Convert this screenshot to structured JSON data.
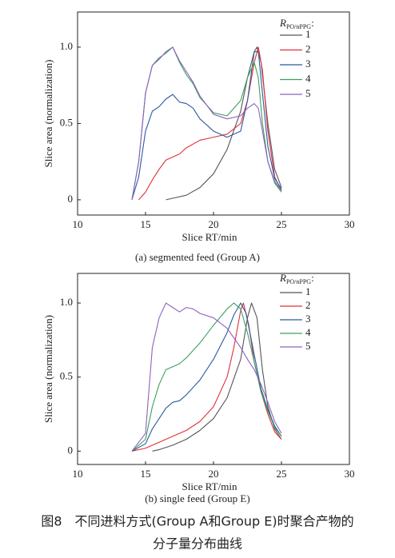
{
  "chart_data": [
    {
      "type": "line",
      "caption": "(a) segmented feed (Group A)",
      "xlabel": "Slice RT/min",
      "ylabel": "Slice area (normalization)",
      "legend_title": "R",
      "legend_title_sub": "PO/nPPG",
      "legend_title_suffix": ":",
      "xlim": [
        10,
        30
      ],
      "xticks": [
        10,
        15,
        20,
        25,
        30
      ],
      "ylim": [
        -0.1,
        1.23
      ],
      "yticks": [
        0,
        0.5,
        {
          "value": 1,
          "label": "1.0"
        }
      ],
      "series": [
        {
          "name": "1",
          "color": "#555555",
          "x": [
            16.5,
            17,
            18,
            19,
            20,
            21,
            22,
            22.5,
            23,
            23.2,
            23.5,
            24,
            24.5,
            25
          ],
          "values": [
            0,
            0.01,
            0.03,
            0.08,
            0.17,
            0.33,
            0.58,
            0.8,
            0.97,
            1.0,
            0.9,
            0.5,
            0.2,
            0.08
          ]
        },
        {
          "name": "2",
          "color": "#e0303a",
          "x": [
            14.5,
            15,
            15.5,
            16,
            16.5,
            17,
            17.5,
            18,
            19,
            20,
            21,
            22,
            22.5,
            23,
            23.3,
            23.6,
            24,
            24.5,
            25
          ],
          "values": [
            0,
            0.05,
            0.13,
            0.2,
            0.26,
            0.28,
            0.3,
            0.34,
            0.39,
            0.41,
            0.43,
            0.5,
            0.65,
            0.9,
            1.0,
            0.85,
            0.45,
            0.15,
            0.06
          ]
        },
        {
          "name": "3",
          "color": "#2a5aa0",
          "x": [
            14,
            14.5,
            15,
            15.5,
            16,
            16.5,
            17,
            17.5,
            18,
            18.5,
            19,
            20,
            21,
            22,
            22.5,
            23,
            23.3,
            23.6,
            24,
            24.5,
            25
          ],
          "values": [
            0,
            0.15,
            0.45,
            0.58,
            0.61,
            0.66,
            0.69,
            0.64,
            0.63,
            0.6,
            0.53,
            0.45,
            0.41,
            0.45,
            0.65,
            0.97,
            0.97,
            0.7,
            0.35,
            0.14,
            0.07
          ]
        },
        {
          "name": "4",
          "color": "#3aa060",
          "x": [
            14,
            14.5,
            15,
            15.5,
            16,
            16.5,
            17,
            17.5,
            18,
            18.5,
            19,
            20,
            21,
            22,
            22.5,
            23,
            23.3,
            23.6,
            24,
            24.5,
            25
          ],
          "values": [
            0,
            0.25,
            0.7,
            0.88,
            0.93,
            0.96,
            1.0,
            0.9,
            0.82,
            0.76,
            0.67,
            0.57,
            0.55,
            0.65,
            0.8,
            0.9,
            0.8,
            0.5,
            0.25,
            0.11,
            0.05
          ]
        },
        {
          "name": "5",
          "color": "#9060c0",
          "x": [
            14,
            14.5,
            15,
            15.5,
            16,
            16.5,
            17,
            17.5,
            18,
            18.5,
            19,
            20,
            21,
            22,
            22.5,
            23,
            23.3,
            23.6,
            24,
            24.5,
            25
          ],
          "values": [
            0,
            0.25,
            0.7,
            0.88,
            0.92,
            0.97,
            1.0,
            0.91,
            0.84,
            0.77,
            0.68,
            0.56,
            0.53,
            0.55,
            0.6,
            0.63,
            0.6,
            0.45,
            0.25,
            0.12,
            0.06
          ]
        }
      ]
    },
    {
      "type": "line",
      "caption": "(b) single feed (Group E)",
      "xlabel": "Slice RT/min",
      "ylabel": "Slice area (normalization)",
      "legend_title": "R",
      "legend_title_sub": "PO/nPPG",
      "legend_title_suffix": ":",
      "xlim": [
        10,
        30
      ],
      "xticks": [
        10,
        15,
        20,
        25,
        30
      ],
      "ylim": [
        -0.09,
        1.2
      ],
      "yticks": [
        0,
        0.5,
        {
          "value": 1,
          "label": "1.0"
        }
      ],
      "series": [
        {
          "name": "1",
          "color": "#555555",
          "x": [
            15.5,
            16,
            17,
            18,
            19,
            20,
            21,
            22,
            22.5,
            22.8,
            23.2,
            23.6,
            24,
            24.5,
            25
          ],
          "values": [
            0,
            0.01,
            0.04,
            0.08,
            0.14,
            0.22,
            0.36,
            0.62,
            0.9,
            1.0,
            0.9,
            0.55,
            0.3,
            0.15,
            0.08
          ]
        },
        {
          "name": "2",
          "color": "#e0303a",
          "x": [
            14,
            15,
            16,
            17,
            18,
            19,
            20,
            21,
            21.5,
            22,
            22.2,
            22.6,
            23,
            23.5,
            24,
            24.5,
            25
          ],
          "values": [
            0,
            0.02,
            0.06,
            0.1,
            0.14,
            0.2,
            0.3,
            0.5,
            0.7,
            0.95,
            1.0,
            0.85,
            0.6,
            0.4,
            0.25,
            0.13,
            0.08
          ]
        },
        {
          "name": "3",
          "color": "#2a5aa0",
          "x": [
            14,
            15,
            15.5,
            16,
            16.5,
            17,
            17.5,
            18,
            19,
            20,
            21,
            21.5,
            22,
            22.4,
            23,
            23.5,
            24,
            24.5,
            25
          ],
          "values": [
            0,
            0.05,
            0.15,
            0.22,
            0.29,
            0.33,
            0.34,
            0.38,
            0.48,
            0.62,
            0.8,
            0.92,
            1.0,
            0.93,
            0.65,
            0.42,
            0.28,
            0.17,
            0.1
          ]
        },
        {
          "name": "4",
          "color": "#3aa060",
          "x": [
            14,
            15,
            15.5,
            16,
            16.5,
            17,
            17.5,
            18,
            19,
            20,
            21,
            21.5,
            22,
            22.5,
            23,
            23.5,
            24,
            24.5,
            25
          ],
          "values": [
            0,
            0.08,
            0.3,
            0.45,
            0.55,
            0.57,
            0.59,
            0.63,
            0.73,
            0.85,
            0.96,
            1.0,
            0.96,
            0.8,
            0.6,
            0.4,
            0.27,
            0.16,
            0.1
          ]
        },
        {
          "name": "5",
          "color": "#9060c0",
          "x": [
            14,
            15,
            15.5,
            16,
            16.5,
            17,
            17.5,
            18,
            18.5,
            19,
            20,
            21,
            22,
            22.5,
            23,
            23.5,
            24,
            24.5,
            25
          ],
          "values": [
            0,
            0.12,
            0.7,
            0.9,
            1.0,
            0.97,
            0.94,
            0.97,
            0.96,
            0.93,
            0.9,
            0.83,
            0.7,
            0.62,
            0.55,
            0.45,
            0.33,
            0.2,
            0.12
          ]
        }
      ]
    }
  ],
  "figure_caption": [
    "图8　不同进料方式(Group A和Group E)时聚合产物的",
    "分子量分布曲线"
  ]
}
